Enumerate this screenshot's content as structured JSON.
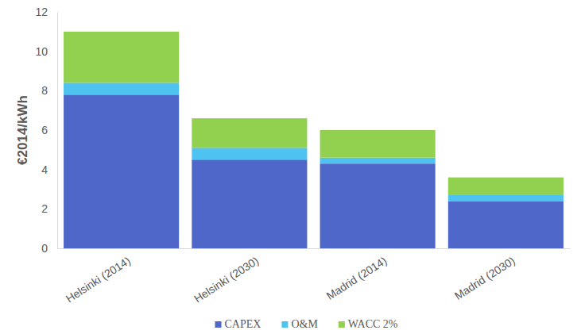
{
  "chart_data": {
    "type": "bar",
    "stacked": true,
    "categories": [
      "Helsinki (2014)",
      "Helsinki (2030)",
      "Madrid (2014)",
      "Madrid (2030)"
    ],
    "series": [
      {
        "name": "CAPEX",
        "color": "#4f67c9",
        "values": [
          7.8,
          4.5,
          4.3,
          2.4
        ]
      },
      {
        "name": "O&M",
        "color": "#4fc3f0",
        "values": [
          0.6,
          0.6,
          0.3,
          0.3
        ]
      },
      {
        "name": "WACC 2%",
        "color": "#92d050",
        "values": [
          2.6,
          1.5,
          1.4,
          0.9
        ]
      }
    ],
    "y_label": "€2014/kWh",
    "ylim": [
      0,
      12
    ],
    "yticks": [
      0,
      2,
      4,
      6,
      8,
      10,
      12
    ],
    "grid": false,
    "legend": "bottom"
  }
}
